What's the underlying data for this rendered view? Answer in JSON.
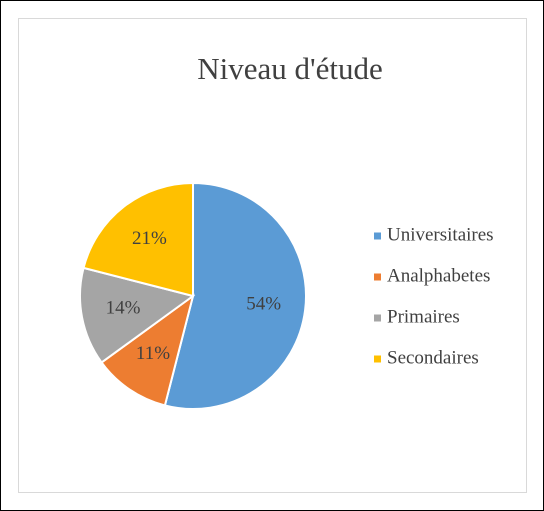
{
  "chart_data": {
    "type": "pie",
    "title": "Niveau d'étude",
    "categories": [
      "Universitaires",
      "Analphabetes",
      "Primaires",
      "Secondaires"
    ],
    "values": [
      54,
      11,
      14,
      21
    ],
    "value_labels": [
      "54%",
      "11%",
      "14%",
      "21%"
    ],
    "colors": [
      "#5b9bd5",
      "#ed7d31",
      "#a5a5a5",
      "#ffc000"
    ],
    "legend": "right"
  }
}
